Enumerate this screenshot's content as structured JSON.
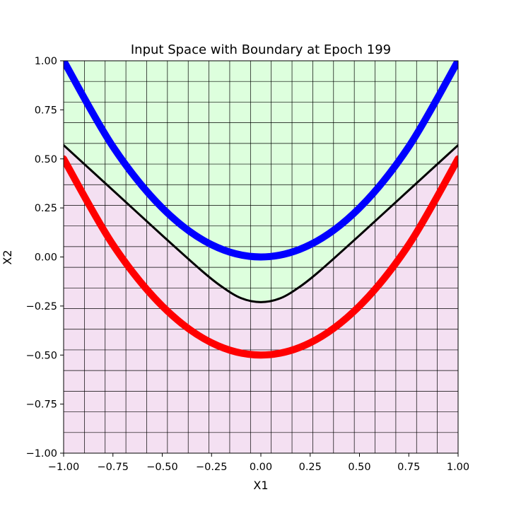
{
  "chart_data": {
    "type": "line",
    "title": "Input Space with Boundary at Epoch 199",
    "xlabel": "X1",
    "ylabel": "X2",
    "xlim": [
      -1.0,
      1.0
    ],
    "ylim": [
      -1.0,
      1.0
    ],
    "xticks": [
      "−1.00",
      "−0.75",
      "−0.50",
      "−0.25",
      "0.00",
      "0.25",
      "0.50",
      "0.75",
      "1.00"
    ],
    "yticks": [
      "−1.00",
      "−0.75",
      "−0.50",
      "−0.25",
      "0.00",
      "0.25",
      "0.50",
      "0.75",
      "1.00"
    ],
    "grid": true,
    "grid_cells": 19,
    "regions": {
      "above_boundary_color": "#ddffdd",
      "below_boundary_color": "#f4e0f2"
    },
    "series": [
      {
        "role": "upper-curve",
        "color": "#0000ff",
        "x": [
          -1.0,
          -0.75,
          -0.5,
          -0.25,
          0.0,
          0.25,
          0.5,
          0.75,
          1.0
        ],
        "y": [
          1.0,
          0.5625,
          0.25,
          0.0625,
          0.0,
          0.0625,
          0.25,
          0.5625,
          1.0
        ]
      },
      {
        "role": "lower-curve",
        "color": "#ff0000",
        "x": [
          -1.0,
          -0.75,
          -0.5,
          -0.25,
          0.0,
          0.25,
          0.5,
          0.75,
          1.0
        ],
        "y": [
          0.5,
          0.0625,
          -0.25,
          -0.4375,
          -0.5,
          -0.4375,
          -0.25,
          0.0625,
          0.5
        ]
      },
      {
        "role": "decision-boundary",
        "color": "#000000",
        "x": [
          -1.0,
          -0.75,
          -0.5,
          -0.3,
          -0.2,
          -0.1,
          0.0,
          0.1,
          0.2,
          0.3,
          0.5,
          0.75,
          1.0
        ],
        "y": [
          0.57,
          0.34,
          0.11,
          -0.07,
          -0.15,
          -0.21,
          -0.23,
          -0.21,
          -0.15,
          -0.07,
          0.11,
          0.34,
          0.57
        ]
      }
    ]
  }
}
